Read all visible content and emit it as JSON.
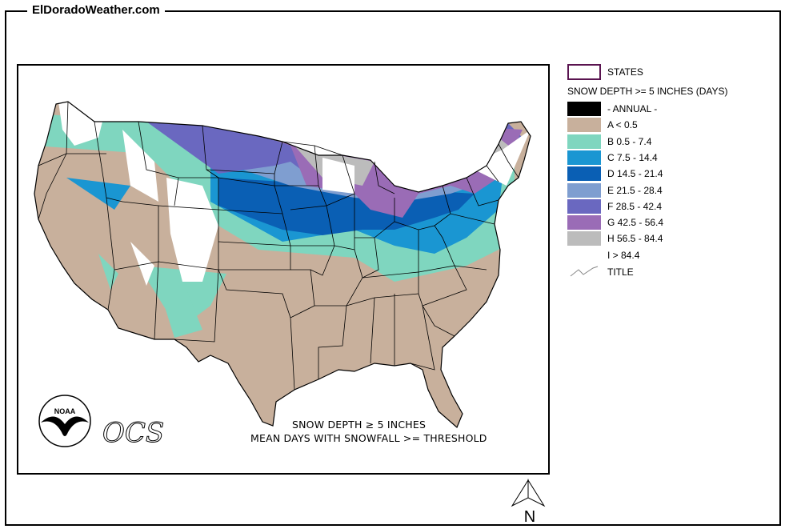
{
  "site": {
    "title": "ElDoradoWeather.com"
  },
  "map": {
    "caption_line1": "SNOW DEPTH ≥ 5 INCHES",
    "caption_line2": "MEAN DAYS WITH SNOWFALL >= THRESHOLD",
    "noaa_logo_text": "NOAA",
    "ocs_logo_text": "OCS",
    "north_label": "N"
  },
  "legend": {
    "states_label": "STATES",
    "header": "SNOW DEPTH >= 5 INCHES (DAYS)",
    "title_label": "TITLE",
    "classes": [
      {
        "label": "- ANNUAL -",
        "color": "#000000"
      },
      {
        "label": "A < 0.5",
        "color": "#c8b09c"
      },
      {
        "label": "B 0.5 - 7.4",
        "color": "#7fd6bf"
      },
      {
        "label": "C 7.5 - 14.4",
        "color": "#1a96d2"
      },
      {
        "label": "D 14.5 - 21.4",
        "color": "#0a5fb4"
      },
      {
        "label": "E 21.5 - 28.4",
        "color": "#7f9ed0"
      },
      {
        "label": "F 28.5 - 42.4",
        "color": "#6a68c0"
      },
      {
        "label": "G 42.5 - 56.4",
        "color": "#9a6cb6"
      },
      {
        "label": "H 56.5 - 84.4",
        "color": "#bcbcbc"
      },
      {
        "label": "I > 84.4",
        "color": "#ffffff"
      }
    ],
    "states_outline_color": "#5a1450"
  }
}
